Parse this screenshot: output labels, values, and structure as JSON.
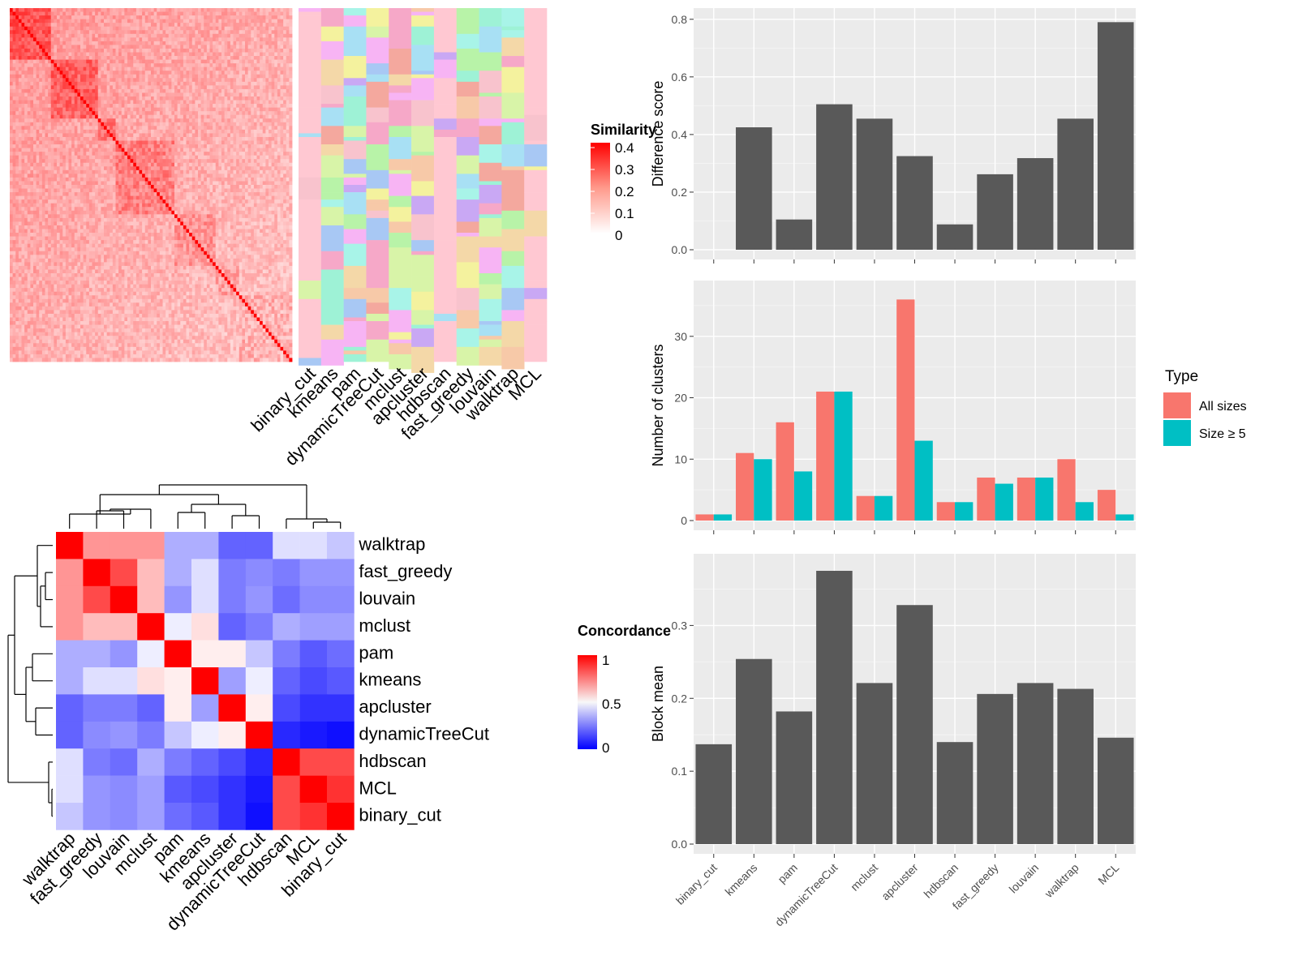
{
  "chart_data": [
    {
      "type": "heatmap",
      "name": "similarity-heatmap-with-cluster-annotations",
      "legend_title": "Similarity",
      "legend_ticks": [
        "0.4",
        "0.3",
        "0.2",
        "0.1",
        "0"
      ],
      "annotation_columns": [
        "binary_cut",
        "kmeans",
        "pam",
        "dynamicTreeCut",
        "mclust",
        "apcluster",
        "hdbscan",
        "fast_greedy",
        "louvain",
        "walktrap",
        "MCL"
      ]
    },
    {
      "type": "heatmap",
      "name": "concordance-heatmap",
      "legend_title": "Concordance",
      "legend_ticks": [
        "1",
        "0.5",
        "0"
      ],
      "row_labels": [
        "walktrap",
        "fast_greedy",
        "louvain",
        "mclust",
        "pam",
        "kmeans",
        "apcluster",
        "dynamicTreeCut",
        "hdbscan",
        "MCL",
        "binary_cut"
      ],
      "col_labels": [
        "walktrap",
        "fast_greedy",
        "louvain",
        "mclust",
        "pam",
        "kmeans",
        "apcluster",
        "dynamicTreeCut",
        "hdbscan",
        "MCL",
        "binary_cut"
      ],
      "values": [
        [
          1.0,
          0.7,
          0.7,
          0.7,
          0.35,
          0.35,
          0.2,
          0.2,
          0.45,
          0.45,
          0.4
        ],
        [
          0.7,
          1.0,
          0.85,
          0.62,
          0.35,
          0.45,
          0.25,
          0.28,
          0.25,
          0.3,
          0.3
        ],
        [
          0.7,
          0.85,
          1.0,
          0.62,
          0.3,
          0.45,
          0.25,
          0.3,
          0.22,
          0.28,
          0.28
        ],
        [
          0.7,
          0.62,
          0.62,
          1.0,
          0.48,
          0.55,
          0.2,
          0.25,
          0.35,
          0.32,
          0.32
        ],
        [
          0.35,
          0.35,
          0.3,
          0.48,
          1.0,
          0.52,
          0.52,
          0.4,
          0.25,
          0.18,
          0.22
        ],
        [
          0.35,
          0.45,
          0.45,
          0.55,
          0.52,
          1.0,
          0.32,
          0.48,
          0.2,
          0.15,
          0.18
        ],
        [
          0.2,
          0.25,
          0.25,
          0.2,
          0.52,
          0.32,
          1.0,
          0.52,
          0.15,
          0.1,
          0.1
        ],
        [
          0.2,
          0.28,
          0.3,
          0.25,
          0.4,
          0.48,
          0.52,
          1.0,
          0.08,
          0.05,
          0.03
        ],
        [
          0.45,
          0.25,
          0.22,
          0.35,
          0.25,
          0.2,
          0.15,
          0.08,
          1.0,
          0.85,
          0.85
        ],
        [
          0.45,
          0.3,
          0.28,
          0.32,
          0.18,
          0.15,
          0.1,
          0.05,
          0.85,
          1.0,
          0.9
        ],
        [
          0.4,
          0.3,
          0.28,
          0.32,
          0.22,
          0.18,
          0.1,
          0.03,
          0.85,
          0.9,
          1.0
        ]
      ]
    },
    {
      "type": "bar",
      "name": "difference-score",
      "categories": [
        "binary_cut",
        "kmeans",
        "pam",
        "dynamicTreeCut",
        "mclust",
        "apcluster",
        "hdbscan",
        "fast_greedy",
        "louvain",
        "walktrap",
        "MCL"
      ],
      "values": [
        0.0,
        0.425,
        0.105,
        0.505,
        0.455,
        0.325,
        0.088,
        0.262,
        0.318,
        0.455,
        0.79
      ],
      "ylabel": "Difference score",
      "ylim": [
        0,
        0.805
      ],
      "yticks": [
        "0.0",
        "0.2",
        "0.4",
        "0.6",
        "0.8"
      ],
      "color": "#595959"
    },
    {
      "type": "bar",
      "name": "number-of-clusters",
      "categories": [
        "binary_cut",
        "kmeans",
        "pam",
        "dynamicTreeCut",
        "mclust",
        "apcluster",
        "hdbscan",
        "fast_greedy",
        "louvain",
        "walktrap",
        "MCL"
      ],
      "series": [
        {
          "name": "All sizes",
          "values": [
            1,
            11,
            16,
            21,
            4,
            36,
            3,
            7,
            7,
            10,
            5
          ],
          "color": "#F8766D"
        },
        {
          "name": "Size ≥ 5",
          "values": [
            1,
            10,
            8,
            21,
            4,
            13,
            3,
            6,
            7,
            3,
            1
          ],
          "color": "#00BFC4"
        }
      ],
      "ylabel": "Number of clusters",
      "ylim": [
        0,
        37.5
      ],
      "yticks": [
        "0",
        "10",
        "20",
        "30"
      ],
      "legend_title": "Type"
    },
    {
      "type": "bar",
      "name": "block-mean",
      "categories": [
        "binary_cut",
        "kmeans",
        "pam",
        "dynamicTreeCut",
        "mclust",
        "apcluster",
        "hdbscan",
        "fast_greedy",
        "louvain",
        "walktrap",
        "MCL"
      ],
      "values": [
        0.137,
        0.254,
        0.182,
        0.375,
        0.221,
        0.328,
        0.14,
        0.206,
        0.221,
        0.213,
        0.146
      ],
      "ylabel": "Block mean",
      "ylim": [
        0,
        0.385
      ],
      "yticks": [
        "0.0",
        "0.1",
        "0.2",
        "0.3"
      ],
      "color": "#595959"
    }
  ]
}
